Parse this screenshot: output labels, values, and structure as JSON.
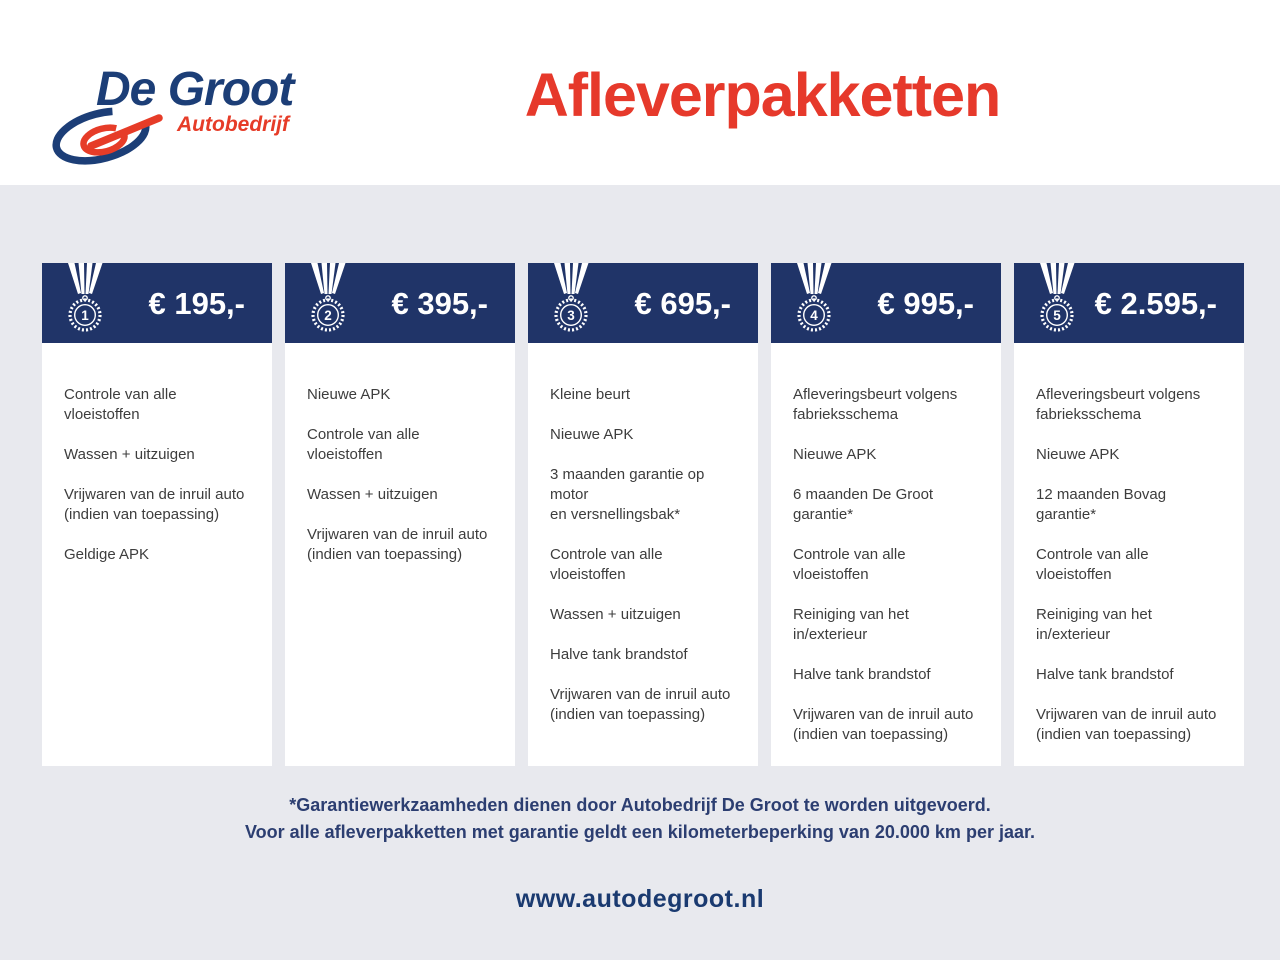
{
  "brand": {
    "name": "De Groot",
    "subtitle": "Autobedrijf",
    "blue": "#1c3e77",
    "red": "#e63c28"
  },
  "page": {
    "title": "Afleverpakketten",
    "website": "www.autodegroot.nl",
    "note_line1": "*Garantiewerkzaamheden dienen door Autobedrijf De Groot te worden uitgevoerd.",
    "note_line2": "Voor alle afleverpakketten met garantie geldt een kilometerbeperking van 20.000 km per jaar."
  },
  "colors": {
    "card_header_navy": "#203468",
    "background_gray": "#e8e9ee",
    "title_red": "#e6392b",
    "item_text": "#3d3d3d",
    "note_navy": "#2c3e71"
  },
  "icons": {
    "medal": "medal-icon"
  },
  "packages": [
    {
      "number": "1",
      "price": "€ 195,-",
      "items": [
        "Controle van alle vloeistoffen",
        "Wassen + uitzuigen",
        "Vrijwaren van de inruil auto\n(indien van toepassing)",
        "Geldige APK"
      ]
    },
    {
      "number": "2",
      "price": "€ 395,-",
      "items": [
        "Nieuwe APK",
        "Controle van alle vloeistoffen",
        "Wassen + uitzuigen",
        "Vrijwaren van de inruil auto\n(indien van toepassing)"
      ]
    },
    {
      "number": "3",
      "price": "€ 695,-",
      "items": [
        "Kleine beurt",
        "Nieuwe APK",
        "3 maanden garantie op motor\nen versnellingsbak*",
        "Controle van alle vloeistoffen",
        "Wassen + uitzuigen",
        "Halve tank brandstof",
        "Vrijwaren van de inruil auto\n(indien van toepassing)"
      ]
    },
    {
      "number": "4",
      "price": "€ 995,-",
      "items": [
        "Afleveringsbeurt volgens\nfabrieksschema",
        "Nieuwe APK",
        "6 maanden De Groot garantie*",
        "Controle van alle vloeistoffen",
        "Reiniging van het in/exterieur",
        "Halve tank brandstof",
        "Vrijwaren van de inruil auto\n(indien van toepassing)"
      ]
    },
    {
      "number": "5",
      "price": "€ 2.595,-",
      "items": [
        "Afleveringsbeurt volgens\nfabrieksschema",
        "Nieuwe APK",
        "12 maanden Bovag garantie*",
        "Controle van alle vloeistoffen",
        "Reiniging van het in/exterieur",
        "Halve tank brandstof",
        "Vrijwaren van de inruil auto\n(indien van toepassing)"
      ]
    }
  ]
}
